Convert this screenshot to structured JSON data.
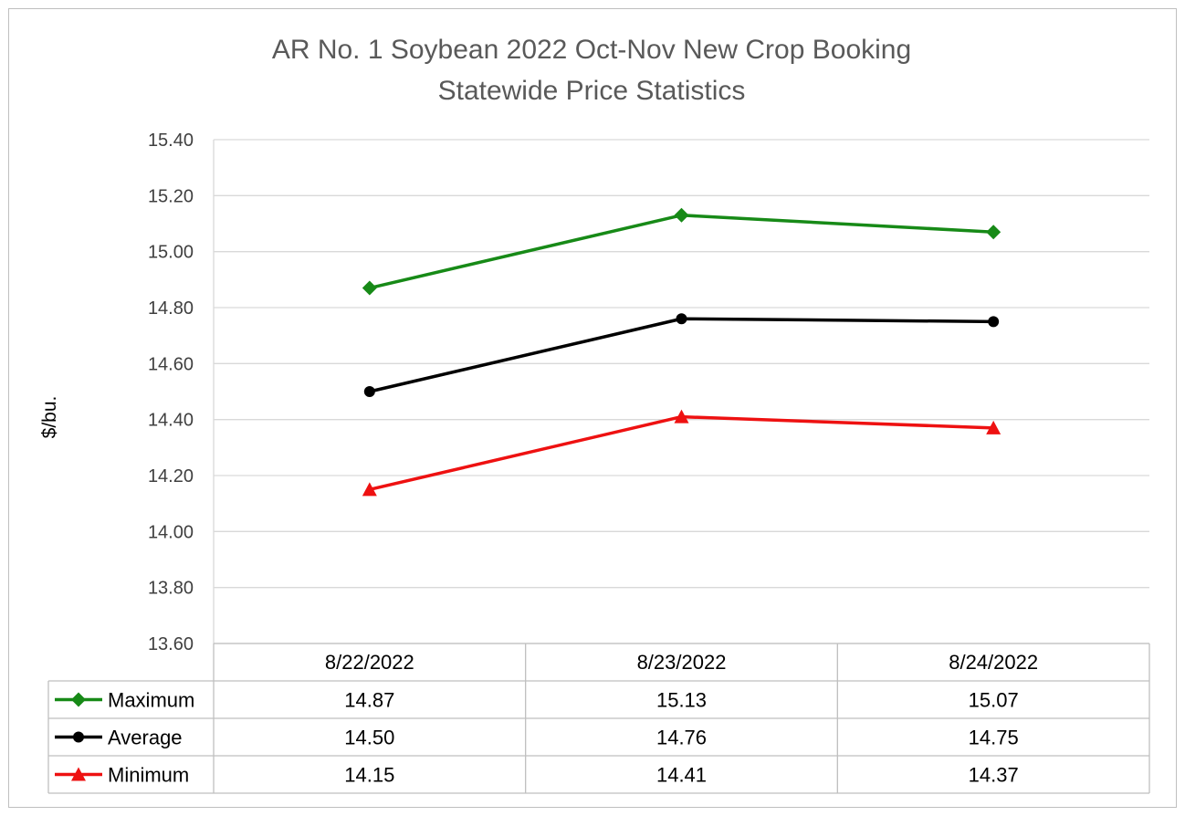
{
  "chart_data": {
    "type": "line",
    "title": [
      "AR No. 1 Soybean 2022 Oct-Nov New Crop Booking",
      "Statewide Price Statistics"
    ],
    "ylabel": "$/bu.",
    "xlabel": "",
    "categories": [
      "8/22/2022",
      "8/23/2022",
      "8/24/2022"
    ],
    "ylim": [
      13.6,
      15.4
    ],
    "yticks": [
      "15.40",
      "15.20",
      "15.00",
      "14.80",
      "14.60",
      "14.40",
      "14.20",
      "14.00",
      "13.80",
      "13.60"
    ],
    "grid": true,
    "data_table": true,
    "series": [
      {
        "name": "Maximum",
        "color": "#178a17",
        "marker": "diamond",
        "values": [
          14.87,
          15.13,
          15.07
        ],
        "labels": [
          "14.87",
          "15.13",
          "15.07"
        ]
      },
      {
        "name": "Average",
        "color": "#000000",
        "marker": "circle",
        "values": [
          14.5,
          14.76,
          14.75
        ],
        "labels": [
          "14.50",
          "14.76",
          "14.75"
        ]
      },
      {
        "name": "Minimum",
        "color": "#ee1111",
        "marker": "triangle",
        "values": [
          14.15,
          14.41,
          14.37
        ],
        "labels": [
          "14.15",
          "14.41",
          "14.37"
        ]
      }
    ]
  }
}
